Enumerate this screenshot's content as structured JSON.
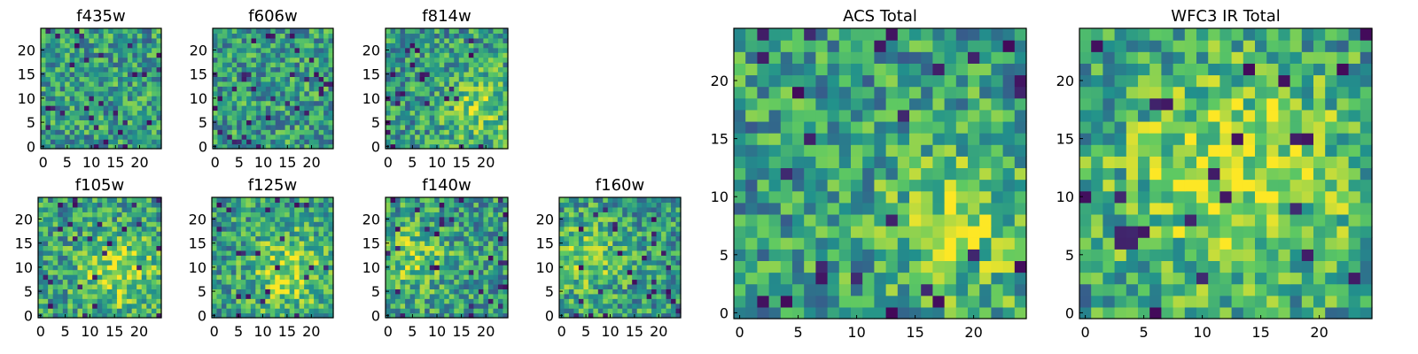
{
  "figure": {
    "description_type": "grid of heatmap image panels"
  },
  "colormap": {
    "name": "viridis",
    "stops": [
      "#440154",
      "#3b528b",
      "#21918c",
      "#5ec962",
      "#fde725"
    ]
  },
  "chart_data": [
    {
      "type": "heatmap",
      "title": "f435w",
      "nx": 25,
      "ny": 25,
      "xlim": [
        -0.5,
        24.5
      ],
      "ylim": [
        -0.5,
        24.5
      ],
      "xticks": [
        0,
        5,
        10,
        15,
        20
      ],
      "yticks": [
        0,
        5,
        10,
        15,
        20
      ],
      "pattern": "noise",
      "seed": 11
    },
    {
      "type": "heatmap",
      "title": "f606w",
      "nx": 25,
      "ny": 25,
      "xlim": [
        -0.5,
        24.5
      ],
      "ylim": [
        -0.5,
        24.5
      ],
      "xticks": [
        0,
        5,
        10,
        15,
        20
      ],
      "yticks": [
        0,
        5,
        10,
        15,
        20
      ],
      "pattern": "noise",
      "seed": 23
    },
    {
      "type": "heatmap",
      "title": "f814w",
      "nx": 25,
      "ny": 25,
      "xlim": [
        -0.5,
        24.5
      ],
      "ylim": [
        -0.5,
        24.5
      ],
      "xticks": [
        0,
        5,
        10,
        15,
        20
      ],
      "yticks": [
        0,
        5,
        10,
        15,
        20
      ],
      "pattern": "blob-right",
      "seed": 37
    },
    {
      "type": "heatmap",
      "title": "f105w",
      "nx": 25,
      "ny": 25,
      "xlim": [
        -0.5,
        24.5
      ],
      "ylim": [
        -0.5,
        24.5
      ],
      "xticks": [
        0,
        5,
        10,
        15,
        20
      ],
      "yticks": [
        0,
        5,
        10,
        15,
        20
      ],
      "pattern": "blob-center",
      "seed": 41
    },
    {
      "type": "heatmap",
      "title": "f125w",
      "nx": 25,
      "ny": 25,
      "xlim": [
        -0.5,
        24.5
      ],
      "ylim": [
        -0.5,
        24.5
      ],
      "xticks": [
        0,
        5,
        10,
        15,
        20
      ],
      "yticks": [
        0,
        5,
        10,
        15,
        20
      ],
      "pattern": "blob-center",
      "seed": 53
    },
    {
      "type": "heatmap",
      "title": "f140w",
      "nx": 25,
      "ny": 25,
      "xlim": [
        -0.5,
        24.5
      ],
      "ylim": [
        -0.5,
        24.5
      ],
      "xticks": [
        0,
        5,
        10,
        15,
        20
      ],
      "yticks": [
        0,
        5,
        10,
        15,
        20
      ],
      "pattern": "blob-left",
      "seed": 67
    },
    {
      "type": "heatmap",
      "title": "f160w",
      "nx": 25,
      "ny": 25,
      "xlim": [
        -0.5,
        24.5
      ],
      "ylim": [
        -0.5,
        24.5
      ],
      "xticks": [
        0,
        5,
        10,
        15,
        20
      ],
      "yticks": [
        0,
        5,
        10,
        15,
        20
      ],
      "pattern": "blob-left",
      "seed": 79
    },
    {
      "type": "heatmap",
      "title": "ACS Total",
      "nx": 25,
      "ny": 25,
      "xlim": [
        -0.5,
        24.5
      ],
      "ylim": [
        -0.5,
        24.5
      ],
      "xticks": [
        0,
        5,
        10,
        15,
        20
      ],
      "yticks": [
        0,
        5,
        10,
        15,
        20
      ],
      "pattern": "blob-right",
      "seed": 97
    },
    {
      "type": "heatmap",
      "title": "WFC3 IR Total",
      "nx": 25,
      "ny": 25,
      "xlim": [
        -0.5,
        24.5
      ],
      "ylim": [
        -0.5,
        24.5
      ],
      "xticks": [
        0,
        5,
        10,
        15,
        20
      ],
      "yticks": [
        0,
        5,
        10,
        15,
        20
      ],
      "pattern": "blob-center-strong",
      "seed": 101
    }
  ]
}
